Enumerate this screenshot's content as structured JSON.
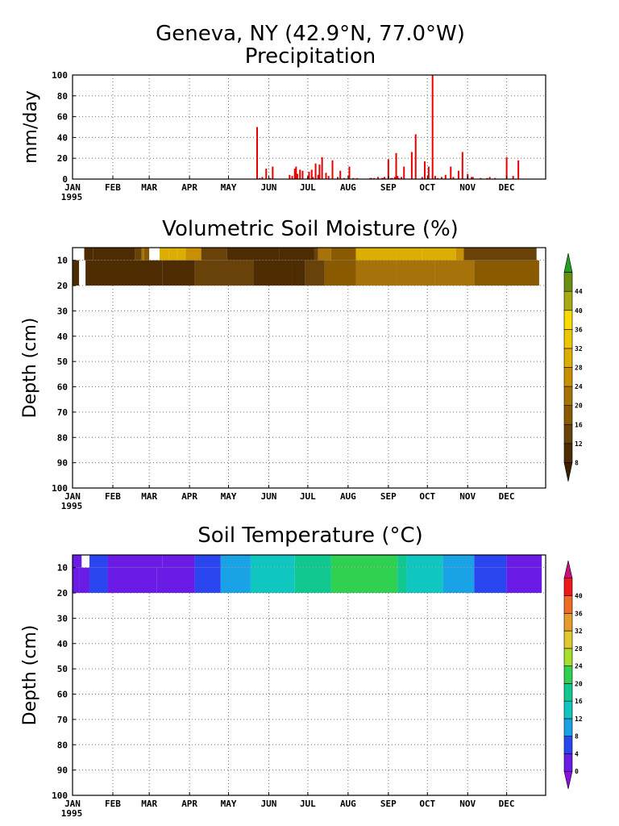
{
  "header": {
    "title": "Geneva, NY  (42.9°N, 77.0°W)"
  },
  "months": [
    "JAN",
    "FEB",
    "MAR",
    "APR",
    "MAY",
    "JUN",
    "JUL",
    "AUG",
    "SEP",
    "OCT",
    "NOV",
    "DEC"
  ],
  "year": "1995",
  "chart_data": [
    {
      "type": "bar",
      "title": "Precipitation",
      "xlabel": "",
      "ylabel": "mm/day",
      "ylim": [
        0,
        100
      ],
      "yticks": [
        0,
        20,
        40,
        60,
        80,
        100
      ],
      "xlim_day": [
        1,
        365
      ],
      "grid": true,
      "color": "#e80000",
      "days": [
        143,
        145,
        147,
        150,
        153,
        155,
        168,
        170,
        172,
        173,
        174,
        176,
        178,
        182,
        183,
        185,
        186,
        188,
        190,
        191,
        193,
        196,
        198,
        201,
        205,
        207,
        210,
        214,
        217,
        220,
        230,
        231,
        233,
        236,
        239,
        240,
        241,
        244,
        246,
        247,
        249,
        250,
        251,
        252,
        254,
        256,
        262,
        265,
        270,
        272,
        275,
        278,
        280,
        282,
        285,
        288,
        292,
        294,
        298,
        301,
        305,
        308,
        309,
        315,
        320,
        322,
        326,
        335,
        340,
        344
      ],
      "values": [
        50,
        1,
        2,
        10,
        1,
        12,
        4,
        3,
        10,
        12,
        5,
        9,
        8,
        2,
        7,
        9,
        2,
        15,
        4,
        14,
        21,
        6,
        3,
        18,
        2,
        8,
        1,
        12,
        1,
        1,
        1,
        1,
        1,
        2,
        1,
        1,
        2,
        19,
        1,
        1,
        2,
        25,
        3,
        1,
        2,
        12,
        26,
        43,
        2,
        17,
        12,
        100,
        3,
        1,
        2,
        4,
        12,
        2,
        8,
        26,
        5,
        2,
        2,
        1,
        1,
        2,
        1,
        21,
        3,
        18
      ]
    },
    {
      "type": "heatmap",
      "title": "Volumetric Soil Moisture (%)",
      "xlabel": "",
      "ylabel": "Depth (cm)",
      "ylim": [
        100,
        5
      ],
      "yticks": [
        10,
        20,
        30,
        40,
        50,
        60,
        70,
        80,
        90,
        100
      ],
      "layers": [
        {
          "depth_range": [
            5,
            10
          ],
          "segments": [
            [
              10,
              17,
              10
            ],
            [
              17,
              49,
              10
            ],
            [
              49,
              54,
              14
            ],
            [
              54,
              56,
              22
            ],
            [
              56,
              60,
              17
            ],
            [
              68,
              75,
              28
            ],
            [
              75,
              82,
              29
            ],
            [
              82,
              88,
              30
            ],
            [
              88,
              100,
              25
            ],
            [
              100,
              120,
              14
            ],
            [
              120,
              160,
              10
            ],
            [
              160,
              187,
              10
            ],
            [
              187,
              190,
              14
            ],
            [
              190,
              200,
              22
            ],
            [
              200,
              219,
              17
            ],
            [
              219,
              250,
              28
            ],
            [
              250,
              270,
              29
            ],
            [
              270,
              296,
              30
            ],
            [
              296,
              302,
              25
            ],
            [
              302,
              358,
              14
            ]
          ]
        },
        {
          "depth_range": [
            10,
            20
          ],
          "segments": [
            [
              1,
              6,
              10
            ],
            [
              11,
              70,
              10
            ],
            [
              70,
              95,
              10
            ],
            [
              95,
              140,
              13
            ],
            [
              140,
              170,
              10
            ],
            [
              170,
              180,
              8
            ],
            [
              180,
              195,
              12
            ],
            [
              195,
              219,
              17
            ],
            [
              219,
              250,
              20
            ],
            [
              250,
              280,
              22
            ],
            [
              280,
              310,
              20
            ],
            [
              310,
              360,
              16
            ]
          ]
        }
      ],
      "colorbar": {
        "levels": [
          8,
          12,
          16,
          20,
          24,
          28,
          32,
          36,
          40,
          44
        ],
        "colors": [
          "#3a2000",
          "#4e2c02",
          "#684208",
          "#8a5a00",
          "#a8720a",
          "#c89000",
          "#dcae00",
          "#eec600",
          "#f8dc00",
          "#a6aa14",
          "#6a8e10",
          "#20a020"
        ]
      }
    },
    {
      "type": "heatmap",
      "title": "Soil Temperature (°C)",
      "xlabel": "",
      "ylabel": "Depth (cm)",
      "ylim": [
        100,
        5
      ],
      "yticks": [
        10,
        20,
        30,
        40,
        50,
        60,
        70,
        80,
        90,
        100
      ],
      "layers": [
        {
          "depth_range": [
            5,
            10
          ],
          "segments": [
            [
              1,
              8,
              2
            ],
            [
              14,
              28,
              6
            ],
            [
              28,
              70,
              2
            ],
            [
              70,
              95,
              2
            ],
            [
              95,
              115,
              6
            ],
            [
              115,
              138,
              11
            ],
            [
              138,
              172,
              14
            ],
            [
              172,
              200,
              18
            ],
            [
              200,
              236,
              21
            ],
            [
              236,
              251,
              22
            ],
            [
              251,
              258,
              18
            ],
            [
              258,
              286,
              14
            ],
            [
              286,
              310,
              10
            ],
            [
              310,
              335,
              6
            ],
            [
              335,
              362,
              2
            ]
          ]
        },
        {
          "depth_range": [
            10,
            20
          ],
          "segments": [
            [
              1,
              6,
              2
            ],
            [
              6,
              14,
              2
            ],
            [
              14,
              28,
              6
            ],
            [
              28,
              66,
              2
            ],
            [
              66,
              95,
              3
            ],
            [
              95,
              115,
              6
            ],
            [
              115,
              138,
              11
            ],
            [
              138,
              172,
              14
            ],
            [
              172,
              200,
              18
            ],
            [
              200,
              236,
              21
            ],
            [
              236,
              251,
              21
            ],
            [
              251,
              258,
              18
            ],
            [
              258,
              286,
              14
            ],
            [
              286,
              310,
              10
            ],
            [
              310,
              335,
              6
            ],
            [
              335,
              362,
              2
            ]
          ]
        }
      ],
      "colorbar": {
        "levels": [
          0,
          4,
          8,
          12,
          16,
          20,
          24,
          28,
          32,
          36,
          40
        ],
        "colors": [
          "#8a10e0",
          "#6a1ce6",
          "#2a46f0",
          "#1aa2e6",
          "#10c6c0",
          "#10c890",
          "#30d050",
          "#a6e02c",
          "#e0c830",
          "#e69c2a",
          "#f06a28",
          "#f01818",
          "#c8107a"
        ]
      }
    }
  ]
}
